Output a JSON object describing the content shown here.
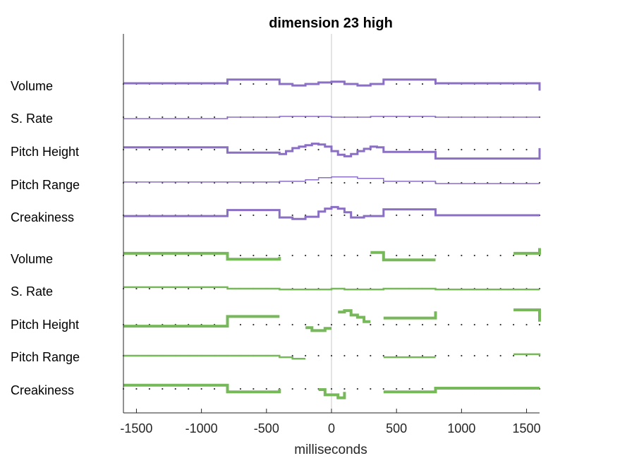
{
  "chart_data": {
    "type": "line",
    "title": "dimension 23 high",
    "xlabel": "milliseconds",
    "xlim": [
      -1600,
      1600
    ],
    "xticks": [
      -1500,
      -1000,
      -500,
      0,
      500,
      1000,
      1500
    ],
    "xtick_labels": [
      "-1500",
      "-1000",
      "-500",
      "0",
      "500",
      "1000",
      "1500"
    ],
    "zero_line": true,
    "rows": [
      {
        "label": "Volume",
        "group": "purple",
        "width": 3,
        "segments": [
          [
            [
              -1600,
              1
            ],
            [
              -800,
              1
            ],
            [
              -800,
              6
            ],
            [
              -400,
              6
            ],
            [
              -400,
              0
            ],
            [
              -300,
              0
            ],
            [
              -300,
              -2
            ],
            [
              -200,
              -2
            ],
            [
              -200,
              0
            ],
            [
              -100,
              0
            ],
            [
              -100,
              2
            ],
            [
              0,
              2
            ],
            [
              0,
              3
            ],
            [
              100,
              3
            ],
            [
              100,
              0
            ],
            [
              200,
              0
            ],
            [
              200,
              -2
            ],
            [
              300,
              -2
            ],
            [
              300,
              0
            ],
            [
              400,
              0
            ],
            [
              400,
              6
            ],
            [
              800,
              6
            ],
            [
              800,
              1
            ],
            [
              1600,
              1
            ],
            [
              1600,
              -9
            ]
          ]
        ]
      },
      {
        "label": "S. Rate",
        "group": "purple",
        "width": 1.5,
        "segments": [
          [
            [
              -1600,
              -2
            ],
            [
              -800,
              -2
            ],
            [
              -800,
              0
            ],
            [
              -400,
              0
            ],
            [
              -400,
              1
            ],
            [
              0,
              1
            ],
            [
              0,
              0
            ],
            [
              300,
              0
            ],
            [
              300,
              1
            ],
            [
              800,
              1
            ],
            [
              800,
              0
            ],
            [
              1600,
              0
            ]
          ]
        ]
      },
      {
        "label": "Pitch Height",
        "group": "purple",
        "width": 3,
        "segments": [
          [
            [
              -1600,
              3
            ],
            [
              -800,
              3
            ],
            [
              -800,
              -4
            ],
            [
              -400,
              -4
            ],
            [
              -400,
              -6
            ],
            [
              -350,
              -6
            ],
            [
              -350,
              -2
            ],
            [
              -300,
              -2
            ],
            [
              -300,
              2
            ],
            [
              -250,
              2
            ],
            [
              -250,
              4
            ],
            [
              -200,
              4
            ],
            [
              -200,
              6
            ],
            [
              -150,
              6
            ],
            [
              -150,
              8
            ],
            [
              -100,
              8
            ],
            [
              -100,
              7
            ],
            [
              -50,
              7
            ],
            [
              -50,
              4
            ],
            [
              0,
              4
            ],
            [
              0,
              -2
            ],
            [
              50,
              -2
            ],
            [
              50,
              -7
            ],
            [
              100,
              -7
            ],
            [
              100,
              -9
            ],
            [
              150,
              -9
            ],
            [
              150,
              -6
            ],
            [
              200,
              -6
            ],
            [
              200,
              -2
            ],
            [
              250,
              -2
            ],
            [
              250,
              1
            ],
            [
              300,
              1
            ],
            [
              300,
              4
            ],
            [
              350,
              4
            ],
            [
              350,
              3
            ],
            [
              400,
              3
            ],
            [
              400,
              -3
            ],
            [
              800,
              -3
            ],
            [
              800,
              -12
            ],
            [
              1600,
              -12
            ],
            [
              1600,
              2
            ]
          ]
        ]
      },
      {
        "label": "Pitch Range",
        "group": "purple",
        "width": 1.5,
        "segments": [
          [
            [
              -1600,
              1
            ],
            [
              -400,
              1
            ],
            [
              -400,
              2
            ],
            [
              -200,
              2
            ],
            [
              -200,
              4
            ],
            [
              -100,
              4
            ],
            [
              -100,
              7
            ],
            [
              0,
              7
            ],
            [
              0,
              8
            ],
            [
              200,
              8
            ],
            [
              200,
              6
            ],
            [
              400,
              6
            ],
            [
              400,
              2
            ],
            [
              800,
              2
            ],
            [
              800,
              -1
            ],
            [
              1600,
              -1
            ]
          ]
        ]
      },
      {
        "label": "Creakiness",
        "group": "purple",
        "width": 3,
        "segments": [
          [
            [
              -1600,
              -1
            ],
            [
              -800,
              -1
            ],
            [
              -800,
              7
            ],
            [
              -400,
              7
            ],
            [
              -400,
              -3
            ],
            [
              -300,
              -3
            ],
            [
              -300,
              -5
            ],
            [
              -200,
              -5
            ],
            [
              -200,
              -2
            ],
            [
              -100,
              -2
            ],
            [
              -100,
              5
            ],
            [
              -50,
              5
            ],
            [
              -50,
              9
            ],
            [
              0,
              9
            ],
            [
              0,
              11
            ],
            [
              50,
              11
            ],
            [
              50,
              9
            ],
            [
              100,
              9
            ],
            [
              100,
              4
            ],
            [
              150,
              4
            ],
            [
              150,
              -3
            ],
            [
              250,
              -3
            ],
            [
              250,
              -1
            ],
            [
              400,
              -1
            ],
            [
              400,
              8
            ],
            [
              800,
              8
            ],
            [
              800,
              0
            ],
            [
              1600,
              0
            ]
          ]
        ]
      },
      {
        "label": "Volume",
        "group": "green",
        "width": 4,
        "segments": [
          [
            [
              -1600,
              3
            ],
            [
              -800,
              3
            ],
            [
              -800,
              -5
            ],
            [
              -400,
              -5
            ],
            [
              -400,
              -2
            ]
          ],
          [
            [
              300,
              4
            ],
            [
              400,
              4
            ],
            [
              400,
              -6
            ],
            [
              800,
              -6
            ]
          ],
          [
            [
              1400,
              3
            ],
            [
              1600,
              3
            ],
            [
              1600,
              10
            ]
          ]
        ]
      },
      {
        "label": "S. Rate",
        "group": "green",
        "width": 2.5,
        "segments": [
          [
            [
              -1600,
              2
            ],
            [
              -800,
              2
            ],
            [
              -800,
              0
            ],
            [
              -400,
              0
            ],
            [
              -400,
              -1
            ],
            [
              0,
              -1
            ],
            [
              0,
              0
            ],
            [
              100,
              0
            ],
            [
              100,
              -1
            ],
            [
              400,
              -1
            ],
            [
              400,
              0
            ],
            [
              800,
              0
            ],
            [
              800,
              -1
            ],
            [
              1600,
              -1
            ]
          ]
        ]
      },
      {
        "label": "Pitch Height",
        "group": "green",
        "width": 4,
        "segments": [
          [
            [
              -1600,
              -2
            ],
            [
              -800,
              -2
            ],
            [
              -800,
              11
            ],
            [
              -400,
              11
            ]
          ],
          [
            [
              -200,
              -4
            ],
            [
              -150,
              -4
            ],
            [
              -150,
              -8
            ],
            [
              -50,
              -8
            ],
            [
              -50,
              -5
            ],
            [
              0,
              -5
            ]
          ],
          [
            [
              50,
              17
            ],
            [
              100,
              17
            ],
            [
              100,
              19
            ],
            [
              150,
              19
            ],
            [
              150,
              13
            ],
            [
              200,
              13
            ],
            [
              200,
              10
            ],
            [
              250,
              10
            ],
            [
              250,
              4
            ],
            [
              300,
              4
            ]
          ],
          [
            [
              400,
              9
            ],
            [
              800,
              9
            ],
            [
              800,
              18
            ]
          ],
          [
            [
              1400,
              20
            ],
            [
              1600,
              20
            ],
            [
              1600,
              4
            ]
          ]
        ]
      },
      {
        "label": "Pitch Range",
        "group": "green",
        "width": 2.5,
        "segments": [
          [
            [
              -1600,
              0
            ],
            [
              -400,
              0
            ],
            [
              -400,
              -2
            ],
            [
              -300,
              -2
            ],
            [
              -300,
              -4
            ],
            [
              -200,
              -4
            ]
          ],
          [
            [
              400,
              -2
            ],
            [
              800,
              -2
            ]
          ],
          [
            [
              1400,
              2
            ],
            [
              1600,
              2
            ],
            [
              1600,
              0
            ]
          ]
        ]
      },
      {
        "label": "Creakiness",
        "group": "green",
        "width": 4,
        "segments": [
          [
            [
              -1600,
              5
            ],
            [
              -800,
              5
            ],
            [
              -800,
              -4
            ],
            [
              -400,
              -4
            ],
            [
              -400,
              0
            ]
          ],
          [
            [
              -100,
              -1
            ],
            [
              -50,
              -1
            ],
            [
              -50,
              -8
            ],
            [
              50,
              -8
            ],
            [
              50,
              -12
            ],
            [
              100,
              -12
            ],
            [
              100,
              -4
            ]
          ],
          [
            [
              400,
              -4
            ],
            [
              800,
              -4
            ],
            [
              800,
              1
            ],
            [
              1600,
              1
            ]
          ]
        ]
      }
    ],
    "colors": {
      "purple": "#8a6fc4",
      "green": "#77b85a",
      "dots": "#333333",
      "zero": "#c8c8c8",
      "axis": "#262626"
    }
  }
}
